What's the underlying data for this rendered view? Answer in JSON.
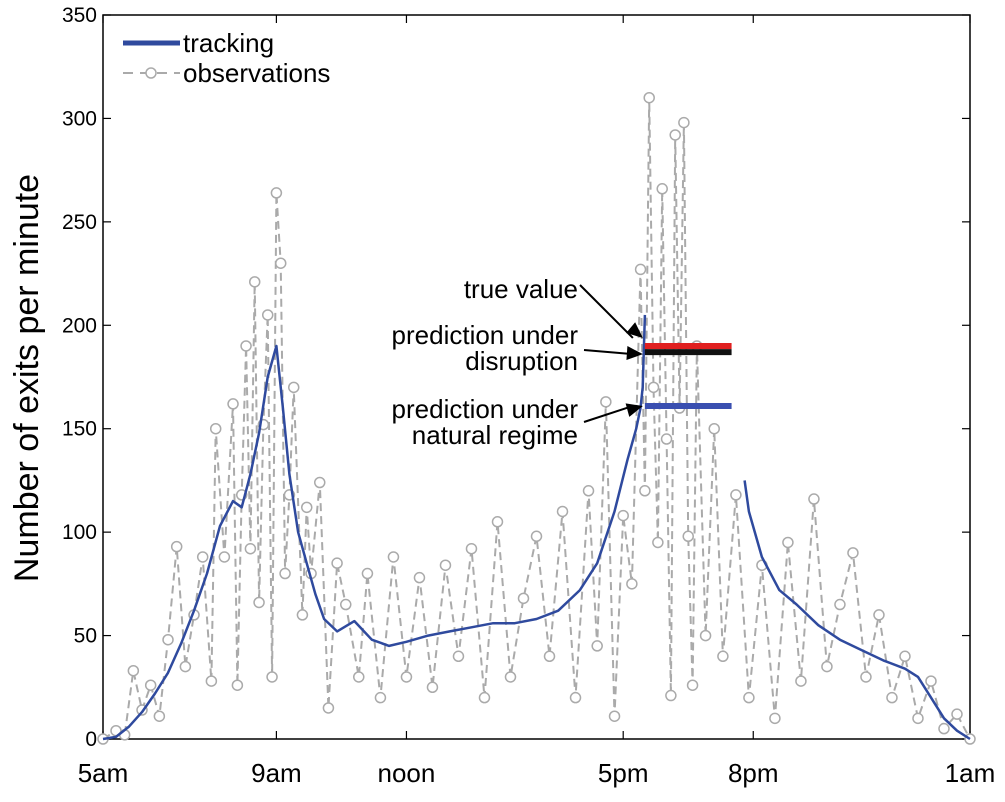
{
  "chart_data": {
    "type": "line",
    "ylabel": "Number of exits per minute",
    "xlabel": "",
    "ylim": [
      0,
      350
    ],
    "yticks": [
      0,
      50,
      100,
      150,
      200,
      250,
      300,
      350
    ],
    "xticks": [
      {
        "label": "5am",
        "hour": 5
      },
      {
        "label": "9am",
        "hour": 9
      },
      {
        "label": "noon",
        "hour": 12
      },
      {
        "label": "5pm",
        "hour": 17
      },
      {
        "label": "8pm",
        "hour": 20
      },
      {
        "label": "1am",
        "hour": 25
      }
    ],
    "xlim_hours": [
      5,
      25
    ],
    "grid": false,
    "legend_position": "top-left",
    "series": [
      {
        "name": "tracking",
        "color": "#2f4a9e",
        "style": "solid",
        "points": [
          [
            5.0,
            0
          ],
          [
            5.3,
            1
          ],
          [
            5.6,
            6
          ],
          [
            5.9,
            13
          ],
          [
            6.2,
            22
          ],
          [
            6.5,
            32
          ],
          [
            6.8,
            46
          ],
          [
            7.1,
            62
          ],
          [
            7.4,
            80
          ],
          [
            7.7,
            103
          ],
          [
            8.0,
            115
          ],
          [
            8.2,
            112
          ],
          [
            8.4,
            128
          ],
          [
            8.6,
            148
          ],
          [
            8.8,
            175
          ],
          [
            9.0,
            190
          ],
          [
            9.15,
            160
          ],
          [
            9.3,
            128
          ],
          [
            9.5,
            100
          ],
          [
            9.7,
            85
          ],
          [
            9.9,
            70
          ],
          [
            10.1,
            58
          ],
          [
            10.4,
            52
          ],
          [
            10.8,
            57
          ],
          [
            11.2,
            48
          ],
          [
            11.6,
            45
          ],
          [
            12.0,
            47
          ],
          [
            12.5,
            50
          ],
          [
            13.0,
            52
          ],
          [
            13.5,
            54
          ],
          [
            14.0,
            56
          ],
          [
            14.5,
            56
          ],
          [
            15.0,
            58
          ],
          [
            15.5,
            62
          ],
          [
            16.0,
            72
          ],
          [
            16.4,
            85
          ],
          [
            16.8,
            110
          ],
          [
            17.1,
            135
          ],
          [
            17.3,
            150
          ],
          [
            17.4,
            160
          ],
          [
            17.45,
            170
          ],
          [
            17.5,
            205
          ],
          [
            19.8,
            125
          ],
          [
            19.9,
            110
          ],
          [
            20.2,
            88
          ],
          [
            20.6,
            72
          ],
          [
            21.0,
            65
          ],
          [
            21.5,
            55
          ],
          [
            22.0,
            48
          ],
          [
            22.5,
            43
          ],
          [
            23.0,
            38
          ],
          [
            23.5,
            34
          ],
          [
            23.8,
            30
          ],
          [
            24.1,
            20
          ],
          [
            24.4,
            10
          ],
          [
            24.7,
            4
          ],
          [
            25.0,
            0
          ]
        ]
      },
      {
        "name": "observations",
        "color": "#aaaaaa",
        "style": "dashed-circle-markers",
        "points": [
          [
            5.0,
            0
          ],
          [
            5.3,
            4
          ],
          [
            5.5,
            2
          ],
          [
            5.7,
            33
          ],
          [
            5.9,
            14
          ],
          [
            6.1,
            26
          ],
          [
            6.3,
            11
          ],
          [
            6.5,
            48
          ],
          [
            6.7,
            93
          ],
          [
            6.9,
            35
          ],
          [
            7.1,
            60
          ],
          [
            7.3,
            88
          ],
          [
            7.5,
            28
          ],
          [
            7.6,
            150
          ],
          [
            7.8,
            88
          ],
          [
            8.0,
            162
          ],
          [
            8.1,
            26
          ],
          [
            8.2,
            118
          ],
          [
            8.3,
            190
          ],
          [
            8.4,
            92
          ],
          [
            8.5,
            221
          ],
          [
            8.6,
            66
          ],
          [
            8.7,
            152
          ],
          [
            8.8,
            205
          ],
          [
            8.9,
            30
          ],
          [
            9.0,
            264
          ],
          [
            9.1,
            230
          ],
          [
            9.2,
            80
          ],
          [
            9.3,
            118
          ],
          [
            9.4,
            170
          ],
          [
            9.6,
            60
          ],
          [
            9.7,
            112
          ],
          [
            9.8,
            80
          ],
          [
            10.0,
            124
          ],
          [
            10.2,
            15
          ],
          [
            10.4,
            85
          ],
          [
            10.6,
            65
          ],
          [
            10.9,
            30
          ],
          [
            11.1,
            80
          ],
          [
            11.4,
            20
          ],
          [
            11.7,
            88
          ],
          [
            12.0,
            30
          ],
          [
            12.3,
            78
          ],
          [
            12.6,
            25
          ],
          [
            12.9,
            84
          ],
          [
            13.2,
            40
          ],
          [
            13.5,
            92
          ],
          [
            13.8,
            20
          ],
          [
            14.1,
            105
          ],
          [
            14.4,
            30
          ],
          [
            14.7,
            68
          ],
          [
            15.0,
            98
          ],
          [
            15.3,
            40
          ],
          [
            15.6,
            110
          ],
          [
            15.9,
            20
          ],
          [
            16.2,
            120
          ],
          [
            16.4,
            45
          ],
          [
            16.6,
            163
          ],
          [
            16.8,
            11
          ],
          [
            17.0,
            108
          ],
          [
            17.2,
            75
          ],
          [
            17.4,
            227
          ],
          [
            17.5,
            120
          ],
          [
            17.6,
            310
          ],
          [
            17.7,
            170
          ],
          [
            17.8,
            95
          ],
          [
            17.9,
            266
          ],
          [
            18.0,
            145
          ],
          [
            18.1,
            21
          ],
          [
            18.2,
            292
          ],
          [
            18.3,
            160
          ],
          [
            18.4,
            298
          ],
          [
            18.5,
            98
          ],
          [
            18.6,
            26
          ],
          [
            18.7,
            190
          ],
          [
            18.9,
            50
          ],
          [
            19.1,
            150
          ],
          [
            19.3,
            40
          ],
          [
            19.6,
            118
          ],
          [
            19.9,
            20
          ],
          [
            20.2,
            84
          ],
          [
            20.5,
            10
          ],
          [
            20.8,
            95
          ],
          [
            21.1,
            28
          ],
          [
            21.4,
            116
          ],
          [
            21.7,
            35
          ],
          [
            22.0,
            65
          ],
          [
            22.3,
            90
          ],
          [
            22.6,
            30
          ],
          [
            22.9,
            60
          ],
          [
            23.2,
            20
          ],
          [
            23.5,
            40
          ],
          [
            23.8,
            10
          ],
          [
            24.1,
            28
          ],
          [
            24.4,
            5
          ],
          [
            24.7,
            12
          ],
          [
            25.0,
            0
          ]
        ]
      }
    ],
    "annotations": [
      {
        "lines": [
          "true value"
        ],
        "y": 190,
        "color": "#e02020"
      },
      {
        "lines": [
          "prediction under",
          "disruption"
        ],
        "y": 187,
        "color": "#111111"
      },
      {
        "lines": [
          "prediction under",
          "natural regime"
        ],
        "y": 161,
        "color": "#3a4fb0"
      }
    ],
    "annotation_segment_hours": [
      17.5,
      19.5
    ]
  }
}
